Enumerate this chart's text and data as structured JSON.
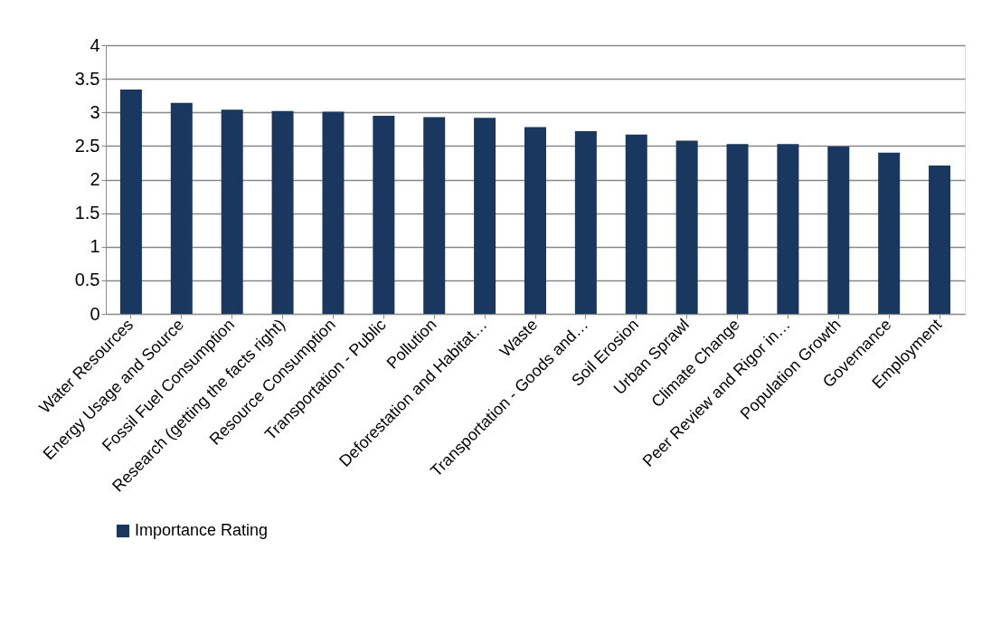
{
  "chart_data": {
    "type": "bar",
    "categories": [
      "Water Resources",
      "Energy Usage and Source",
      "Fossil Fuel Consumption",
      "Research (getting the facts right)",
      "Resource Consumption",
      "Transportation - Public",
      "Pollution",
      "Deforestation and Habitat…",
      "Waste",
      "Transportation - Goods and…",
      "Soil Erosion",
      "Urban Sprawl",
      "Climate Change",
      "Peer Review and Rigor in…",
      "Population Growth",
      "Governance",
      "Employment"
    ],
    "series": [
      {
        "name": "Importance Rating",
        "color": "#1a3760",
        "values": [
          3.34,
          3.14,
          3.04,
          3.02,
          3.01,
          2.95,
          2.93,
          2.92,
          2.78,
          2.72,
          2.67,
          2.58,
          2.53,
          2.53,
          2.49,
          2.4,
          2.21
        ]
      }
    ],
    "ylim": [
      0,
      4
    ],
    "yticks": [
      0,
      0.5,
      1,
      1.5,
      2,
      2.5,
      3,
      3.5,
      4
    ],
    "grid": "y",
    "legend": "bottom"
  }
}
